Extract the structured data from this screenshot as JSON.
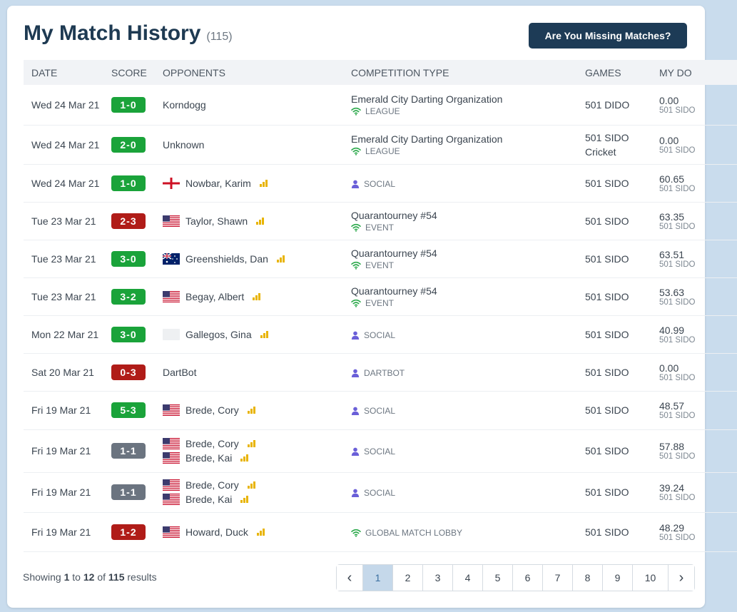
{
  "header": {
    "title": "My Match History",
    "count": "(115)",
    "missing_button": "Are You Missing Matches?"
  },
  "columns": {
    "date": "DATE",
    "score": "SCORE",
    "opponents": "OPPONENTS",
    "competition": "COMPETITION TYPE",
    "games": "GAMES",
    "avg": "MY DO"
  },
  "rows": [
    {
      "date": "Wed 24 Mar 21",
      "score": "1-0",
      "result": "win",
      "opponents": [
        {
          "name": "Korndogg",
          "flag": "none",
          "bars": false
        }
      ],
      "competition": "Emerald City Darting Organization",
      "type": "LEAGUE",
      "type_icon": "wifi-icon",
      "games": [
        "501 DIDO"
      ],
      "avg": "0.00",
      "avg_sub": "501 SIDO"
    },
    {
      "date": "Wed 24 Mar 21",
      "score": "2-0",
      "result": "win",
      "opponents": [
        {
          "name": "Unknown",
          "flag": "none",
          "bars": false
        }
      ],
      "competition": "Emerald City Darting Organization",
      "type": "LEAGUE",
      "type_icon": "wifi-icon",
      "games": [
        "501 SIDO",
        "Cricket"
      ],
      "avg": "0.00",
      "avg_sub": "501 SIDO"
    },
    {
      "date": "Wed 24 Mar 21",
      "score": "1-0",
      "result": "win",
      "opponents": [
        {
          "name": "Nowbar, Karim",
          "flag": "england",
          "bars": true
        }
      ],
      "competition": "",
      "type": "SOCIAL",
      "type_icon": "person-icon",
      "games": [
        "501 SIDO"
      ],
      "avg": "60.65",
      "avg_sub": "501 SIDO"
    },
    {
      "date": "Tue 23 Mar 21",
      "score": "2-3",
      "result": "loss",
      "opponents": [
        {
          "name": "Taylor, Shawn",
          "flag": "usa",
          "bars": true
        }
      ],
      "competition": "Quarantourney #54",
      "type": "EVENT",
      "type_icon": "wifi-icon",
      "games": [
        "501 SIDO"
      ],
      "avg": "63.35",
      "avg_sub": "501 SIDO"
    },
    {
      "date": "Tue 23 Mar 21",
      "score": "3-0",
      "result": "win",
      "opponents": [
        {
          "name": "Greenshields, Dan",
          "flag": "australia",
          "bars": true
        }
      ],
      "competition": "Quarantourney #54",
      "type": "EVENT",
      "type_icon": "wifi-icon",
      "games": [
        "501 SIDO"
      ],
      "avg": "63.51",
      "avg_sub": "501 SIDO"
    },
    {
      "date": "Tue 23 Mar 21",
      "score": "3-2",
      "result": "win",
      "opponents": [
        {
          "name": "Begay, Albert",
          "flag": "usa",
          "bars": true
        }
      ],
      "competition": "Quarantourney #54",
      "type": "EVENT",
      "type_icon": "wifi-icon",
      "games": [
        "501 SIDO"
      ],
      "avg": "53.63",
      "avg_sub": "501 SIDO"
    },
    {
      "date": "Mon 22 Mar 21",
      "score": "3-0",
      "result": "win",
      "opponents": [
        {
          "name": "Gallegos, Gina",
          "flag": "blank",
          "bars": true
        }
      ],
      "competition": "",
      "type": "SOCIAL",
      "type_icon": "person-icon",
      "games": [
        "501 SIDO"
      ],
      "avg": "40.99",
      "avg_sub": "501 SIDO"
    },
    {
      "date": "Sat 20 Mar 21",
      "score": "0-3",
      "result": "loss",
      "opponents": [
        {
          "name": "DartBot",
          "flag": "none",
          "bars": false
        }
      ],
      "competition": "",
      "type": "DARTBOT",
      "type_icon": "person-icon",
      "games": [
        "501 SIDO"
      ],
      "avg": "0.00",
      "avg_sub": "501 SIDO"
    },
    {
      "date": "Fri 19 Mar 21",
      "score": "5-3",
      "result": "win",
      "opponents": [
        {
          "name": "Brede, Cory",
          "flag": "usa",
          "bars": true
        }
      ],
      "competition": "",
      "type": "SOCIAL",
      "type_icon": "person-icon",
      "games": [
        "501 SIDO"
      ],
      "avg": "48.57",
      "avg_sub": "501 SIDO"
    },
    {
      "date": "Fri 19 Mar 21",
      "score": "1-1",
      "result": "draw",
      "opponents": [
        {
          "name": "Brede, Cory",
          "flag": "usa",
          "bars": true
        },
        {
          "name": "Brede, Kai",
          "flag": "usa",
          "bars": true
        }
      ],
      "competition": "",
      "type": "SOCIAL",
      "type_icon": "person-icon",
      "games": [
        "501 SIDO"
      ],
      "avg": "57.88",
      "avg_sub": "501 SIDO"
    },
    {
      "date": "Fri 19 Mar 21",
      "score": "1-1",
      "result": "draw",
      "opponents": [
        {
          "name": "Brede, Cory",
          "flag": "usa",
          "bars": true
        },
        {
          "name": "Brede, Kai",
          "flag": "usa",
          "bars": true
        }
      ],
      "competition": "",
      "type": "SOCIAL",
      "type_icon": "person-icon",
      "games": [
        "501 SIDO"
      ],
      "avg": "39.24",
      "avg_sub": "501 SIDO"
    },
    {
      "date": "Fri 19 Mar 21",
      "score": "1-2",
      "result": "loss",
      "opponents": [
        {
          "name": "Howard, Duck",
          "flag": "usa",
          "bars": true
        }
      ],
      "competition": "",
      "type": "GLOBAL MATCH LOBBY",
      "type_icon": "wifi-icon",
      "games": [
        "501 SIDO"
      ],
      "avg": "48.29",
      "avg_sub": "501 SIDO"
    }
  ],
  "footer": {
    "showing_prefix": "Showing",
    "from": "1",
    "to_word": "to",
    "to": "12",
    "of_word": "of",
    "total": "115",
    "results_word": "results"
  },
  "pagination": {
    "prev": "‹",
    "pages": [
      "1",
      "2",
      "3",
      "4",
      "5",
      "6",
      "7",
      "8",
      "9",
      "10"
    ],
    "active": "1",
    "next": "›"
  }
}
